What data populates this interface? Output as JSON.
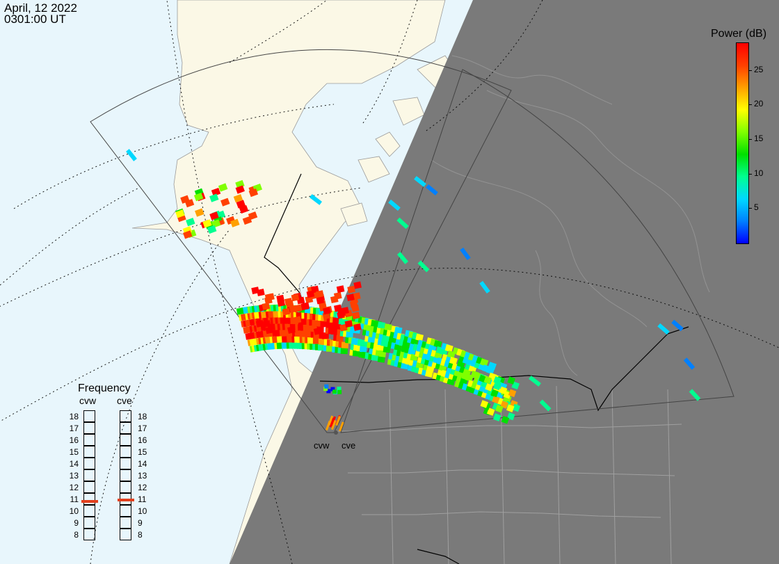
{
  "header": {
    "date": "April, 12 2022",
    "time": "0301:00 UT"
  },
  "colors": {
    "ocean": "#e8f6fc",
    "land": "#fbf8e6",
    "night": "#7a7a7a",
    "freq_marker": "#e2401e",
    "power_scale": [
      "#0000ff",
      "#0080ff",
      "#00d8ff",
      "#00ff90",
      "#00e000",
      "#80ff00",
      "#ffff00",
      "#ffa000",
      "#ff4000",
      "#ff0000"
    ]
  },
  "colorbar": {
    "title": "Power (dB)",
    "ticks": [
      5,
      10,
      15,
      20,
      25
    ],
    "min": 0,
    "max": 29
  },
  "frequency_panel": {
    "title": "Frequency",
    "radars": [
      {
        "name": "cvw",
        "selected_mhz": 10.8
      },
      {
        "name": "cve",
        "selected_mhz": 10.9
      }
    ],
    "levels": [
      18,
      17,
      16,
      15,
      14,
      13,
      12,
      11,
      10,
      9,
      8
    ]
  },
  "site_labels": [
    "cvw",
    "cve"
  ]
}
